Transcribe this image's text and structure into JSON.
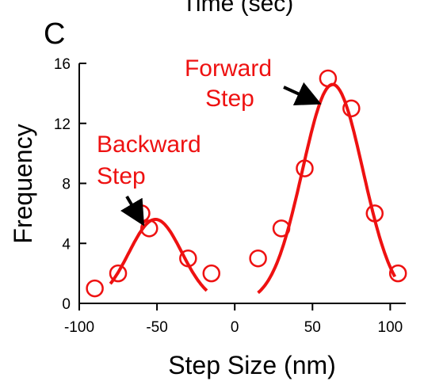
{
  "chart_data": {
    "type": "scatter",
    "panel_letter": "C",
    "top_cutoff_text": "Time (sec)",
    "xlabel": "Step Size (nm)",
    "ylabel": "Frequency",
    "xlim": [
      -100,
      110
    ],
    "ylim": [
      0,
      16
    ],
    "xticks": [
      -100,
      -50,
      0,
      50,
      100
    ],
    "yticks": [
      0,
      4,
      8,
      12,
      16
    ],
    "grid": false,
    "colors": {
      "accent": "#ee1111",
      "axis": "#000000"
    },
    "series": [
      {
        "name": "Backward Step",
        "points": [
          {
            "x": -90,
            "y": 1
          },
          {
            "x": -75,
            "y": 2
          },
          {
            "x": -60,
            "y": 6
          },
          {
            "x": -55,
            "y": 5
          },
          {
            "x": -30,
            "y": 3
          },
          {
            "x": -15,
            "y": 2
          }
        ],
        "fit": {
          "amplitude": 5.6,
          "mean": -51,
          "sigma": 17,
          "x_range": [
            -80,
            -18
          ]
        }
      },
      {
        "name": "Forward Step",
        "points": [
          {
            "x": 15,
            "y": 3
          },
          {
            "x": 30,
            "y": 5
          },
          {
            "x": 45,
            "y": 9
          },
          {
            "x": 60,
            "y": 15
          },
          {
            "x": 75,
            "y": 13
          },
          {
            "x": 90,
            "y": 6
          },
          {
            "x": 105,
            "y": 2
          }
        ],
        "fit": {
          "amplitude": 14.6,
          "mean": 63,
          "sigma": 19.5,
          "x_range": [
            15,
            103
          ]
        }
      }
    ],
    "annotations": [
      {
        "label_lines": [
          "Forward",
          "Step"
        ]
      },
      {
        "label_lines": [
          "Backward",
          "Step"
        ]
      }
    ]
  }
}
